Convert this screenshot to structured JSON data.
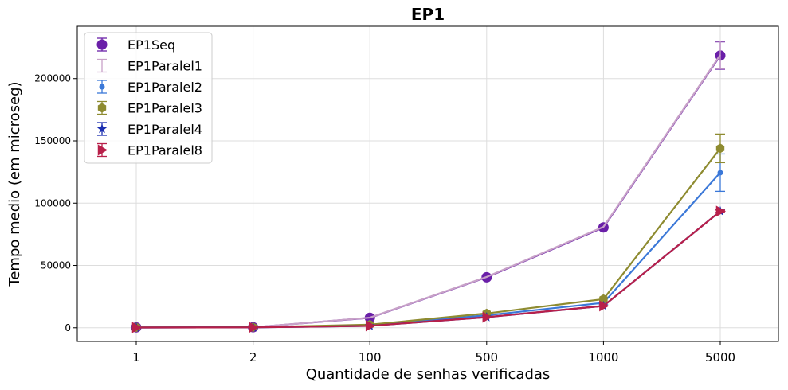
{
  "chart_data": {
    "type": "line",
    "title": "EP1",
    "xlabel": "Quantidade de senhas verificadas",
    "ylabel": "Tempo medio (em microseg)",
    "categories": [
      "1",
      "2",
      "100",
      "500",
      "1000",
      "5000"
    ],
    "yticks": [
      "0",
      "50000",
      "100000",
      "150000",
      "200000"
    ],
    "ylim": [
      -11000,
      242000
    ],
    "grid": true,
    "legend_position": "top-left",
    "series": [
      {
        "name": "EP1Seq",
        "color": "#6a1fa8",
        "marker": "circle",
        "values": [
          300,
          400,
          8000,
          40500,
          80500,
          218500
        ],
        "err": [
          0,
          0,
          0,
          0,
          0,
          11000
        ]
      },
      {
        "name": "EP1Paralel1",
        "color": "#c8a2c8",
        "marker": "none",
        "values": [
          300,
          400,
          8100,
          40800,
          81000,
          219000
        ],
        "err": [
          0,
          0,
          0,
          0,
          0,
          11000
        ]
      },
      {
        "name": "EP1Paralel2",
        "color": "#3b78d8",
        "marker": "small-circle",
        "values": [
          200,
          300,
          2000,
          10000,
          20000,
          124500
        ],
        "err": [
          0,
          0,
          0,
          0,
          0,
          15000
        ]
      },
      {
        "name": "EP1Paralel3",
        "color": "#8e8b30",
        "marker": "hexagon",
        "values": [
          300,
          400,
          2500,
          11500,
          23000,
          144000
        ],
        "err": [
          0,
          0,
          0,
          0,
          0,
          11500
        ]
      },
      {
        "name": "EP1Paralel4",
        "color": "#1c2fb0",
        "marker": "star",
        "values": [
          200,
          300,
          1500,
          8500,
          17500,
          93500
        ],
        "err": [
          0,
          0,
          0,
          0,
          0,
          1000
        ]
      },
      {
        "name": "EP1Paralel8",
        "color": "#b8204a",
        "marker": "triangle-right",
        "values": [
          200,
          300,
          1500,
          8500,
          17500,
          93500
        ],
        "err": [
          0,
          0,
          0,
          0,
          0,
          1000
        ]
      }
    ]
  }
}
